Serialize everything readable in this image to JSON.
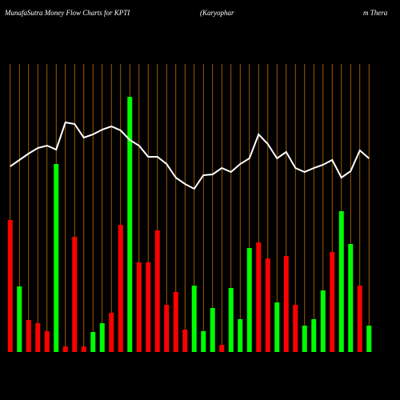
{
  "chart_data": {
    "type": "bar-line",
    "title": "MunafaSutra  Money Flow  Charts for KPTI",
    "subtitle_parts": [
      "(Karyophar",
      "m Thera"
    ],
    "categories": [
      null,
      null,
      null,
      null,
      null,
      null,
      null,
      null,
      null,
      null,
      null,
      null,
      null,
      null,
      null,
      null,
      null,
      null,
      null,
      null,
      null,
      null,
      null,
      null,
      null,
      null,
      null,
      null,
      null,
      null,
      null,
      null,
      null,
      null,
      null,
      null,
      null,
      null,
      null,
      null
    ],
    "values": [
      165,
      82,
      40,
      36,
      26,
      235,
      7,
      144,
      7,
      25,
      36,
      49,
      159,
      319,
      112,
      112,
      152,
      59,
      75,
      28,
      83,
      26,
      55,
      9,
      80,
      41,
      130,
      137,
      117,
      62,
      120,
      59,
      33,
      41,
      77,
      125,
      176,
      135,
      83,
      33
    ],
    "colors": [
      "#ff0000",
      "#00ff00",
      "#ff0000",
      "#ff0000",
      "#ff0000",
      "#00ff00",
      "#ff0000",
      "#ff0000",
      "#ff0000",
      "#00ff00",
      "#00ff00",
      "#ff0000",
      "#ff0000",
      "#00ff00",
      "#ff0000",
      "#ff0000",
      "#ff0000",
      "#ff0000",
      "#ff0000",
      "#ff0000",
      "#00ff00",
      "#00ff00",
      "#00ff00",
      "#ff0000",
      "#00ff00",
      "#00ff00",
      "#00ff00",
      "#ff0000",
      "#ff0000",
      "#00ff00",
      "#ff0000",
      "#ff0000",
      "#00ff00",
      "#00ff00",
      "#00ff00",
      "#ff0000",
      "#00ff00",
      "#00ff00",
      "#ff0000",
      "#00ff00"
    ],
    "line_values": [
      232,
      240,
      248,
      255,
      258,
      253,
      287,
      285,
      268,
      272,
      278,
      282,
      277,
      265,
      258,
      244,
      244,
      235,
      218,
      210,
      204,
      221,
      222,
      230,
      225,
      235,
      242,
      272,
      260,
      242,
      250,
      230,
      225,
      230,
      234,
      240,
      218,
      226,
      252,
      242
    ],
    "line_color": "#ffffff",
    "gridline_color": "#c87000",
    "background": "#000000",
    "ylim": [
      0,
      360
    ]
  }
}
